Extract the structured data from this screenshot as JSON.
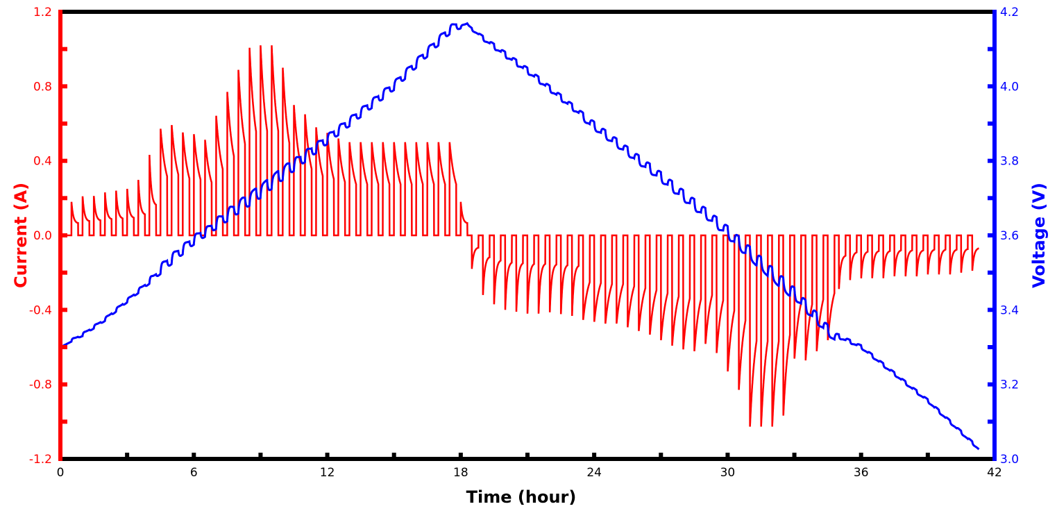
{
  "chart_data": {
    "type": "line",
    "xlabel": "Time (hour)",
    "ylabel_left": "Current (A)",
    "ylabel_right": "Voltage (V)",
    "xlim": [
      0,
      42
    ],
    "ylim_left": [
      -1.2,
      1.2
    ],
    "ylim_right": [
      3.0,
      4.2
    ],
    "x_ticks": [
      "0",
      "6",
      "12",
      "18",
      "24",
      "30",
      "36",
      "42"
    ],
    "y_left_ticks": [
      "1.2",
      "0.8",
      "0.4",
      "0.0",
      "-0.4",
      "-0.8",
      "-1.2"
    ],
    "y_right_ticks": [
      "4.2",
      "4.0",
      "3.8",
      "3.6",
      "3.4",
      "3.2",
      "3.0"
    ],
    "grid": false,
    "colors": {
      "current": "#ff0000",
      "voltage": "#0000ff",
      "frame": "#000000"
    },
    "series": [
      {
        "name": "Current (A)",
        "axis": "left",
        "pulse_interval_h": 0.5,
        "charge_pulses_start_h": 0.5,
        "charge_pulse_peaks": [
          0.18,
          0.21,
          0.22,
          0.24,
          0.25,
          0.26,
          0.31,
          0.45,
          0.58,
          0.6,
          0.56,
          0.55,
          0.52,
          0.65,
          0.78,
          0.9,
          1.02,
          1.02,
          1.02,
          0.9,
          0.7,
          0.65,
          0.58,
          0.55,
          0.52,
          0.5,
          0.5,
          0.5,
          0.5,
          0.5,
          0.5,
          0.5,
          0.5,
          0.5,
          0.5,
          0.18
        ],
        "discharge_pulses_start_h": 18.5,
        "discharge_pulse_peaks": [
          -0.18,
          -0.32,
          -0.37,
          -0.4,
          -0.41,
          -0.42,
          -0.42,
          -0.43,
          -0.44,
          -0.45,
          -0.46,
          -0.47,
          -0.48,
          -0.48,
          -0.5,
          -0.52,
          -0.54,
          -0.57,
          -0.6,
          -0.62,
          -0.63,
          -0.59,
          -0.64,
          -0.74,
          -0.84,
          -1.04,
          -1.04,
          -1.04,
          -0.98,
          -0.67,
          -0.68,
          -0.63,
          -0.57,
          -0.3,
          -0.25,
          -0.24,
          -0.23,
          -0.23,
          -0.22,
          -0.22,
          -0.22,
          -0.21,
          -0.21,
          -0.21,
          -0.2,
          -0.19
        ]
      },
      {
        "name": "Voltage (V)",
        "axis": "right",
        "rest_voltage_points": [
          [
            0,
            3.3
          ],
          [
            1,
            3.33
          ],
          [
            2,
            3.37
          ],
          [
            3,
            3.42
          ],
          [
            4,
            3.47
          ],
          [
            6,
            3.575
          ],
          [
            9,
            3.7
          ],
          [
            12,
            3.845
          ],
          [
            15,
            3.99
          ],
          [
            17.5,
            4.14
          ],
          [
            18.3,
            4.165
          ],
          [
            21,
            4.05
          ],
          [
            24,
            3.905
          ],
          [
            27,
            3.77
          ],
          [
            30,
            3.625
          ],
          [
            33,
            3.46
          ],
          [
            34.8,
            3.34
          ],
          [
            36,
            3.305
          ],
          [
            39,
            3.16
          ],
          [
            41.3,
            3.03
          ]
        ]
      }
    ]
  }
}
